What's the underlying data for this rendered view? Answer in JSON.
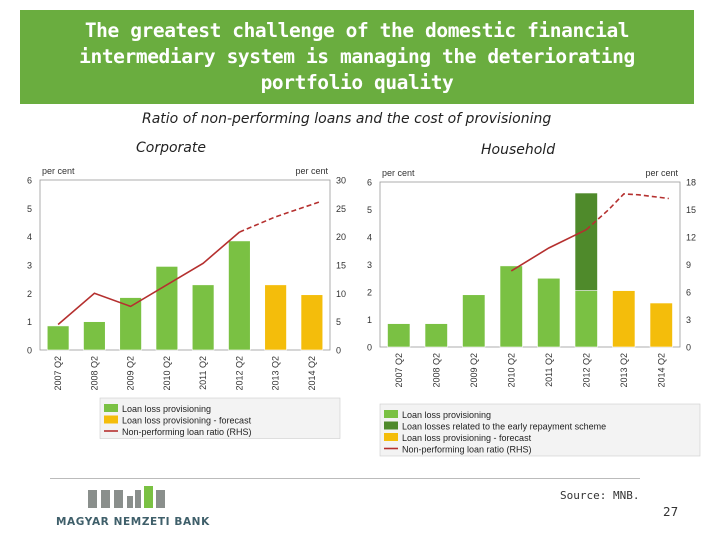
{
  "slide": {
    "title": "The greatest challenge of the domestic financial\nintermediary system is managing the deteriorating\nportfolio quality",
    "subtitle": "Ratio of non-performing loans and the cost of provisioning",
    "source": "Source: MNB.",
    "page_number": "27",
    "logo_text": "MAGYAR NEMZETI BANK"
  },
  "colors": {
    "title_bg": "#6aad3f",
    "provisioning": "#7ac143",
    "early_repayment": "#4f8a2b",
    "forecast": "#f4bd0b",
    "npl_line": "#b5302f"
  },
  "chart_data": [
    {
      "type": "bar",
      "panel_label": "Corporate",
      "categories": [
        "2007 Q2",
        "2008 Q2",
        "2009 Q2",
        "2010 Q2",
        "2011 Q2",
        "2012 Q2",
        "2013 Q2",
        "2014 Q2"
      ],
      "left_axis": {
        "label": "per cent",
        "ylim": [
          0,
          6
        ],
        "ticks": [
          "0",
          "1",
          "2",
          "3",
          "4",
          "5",
          "6"
        ]
      },
      "right_axis": {
        "label": "per cent",
        "ylim": [
          0,
          30
        ],
        "ticks": [
          "0",
          "5",
          "10",
          "15",
          "20",
          "25",
          "30"
        ]
      },
      "series": [
        {
          "name": "Loan loss provisioning",
          "axis": "left",
          "values": [
            0.85,
            1.0,
            1.85,
            2.95,
            2.3,
            3.85,
            null,
            null
          ]
        },
        {
          "name": "Loan loss provisioning - forecast",
          "axis": "left",
          "values": [
            null,
            null,
            null,
            null,
            null,
            null,
            2.3,
            1.95
          ]
        },
        {
          "name": "Non-performing loan ratio (RHS)",
          "axis": "right",
          "type": "line",
          "x": [
            0,
            1,
            2,
            3,
            4,
            5,
            6,
            6.5,
            7.25
          ],
          "values": [
            4.5,
            10.0,
            7.7,
            11.5,
            15.3,
            20.8,
            23.5,
            24.6,
            26.2
          ]
        }
      ],
      "legend": [
        "Loan loss provisioning",
        "Loan loss provisioning - forecast",
        "Non-performing loan ratio (RHS)"
      ],
      "legend_position": "bottom"
    },
    {
      "type": "bar",
      "panel_label": "Household",
      "categories": [
        "2007 Q2",
        "2008 Q2",
        "2009 Q2",
        "2010 Q2",
        "2011 Q2",
        "2012 Q2",
        "2013 Q2",
        "2014 Q2"
      ],
      "left_axis": {
        "label": "per cent",
        "ylim": [
          0,
          6
        ],
        "ticks": [
          "0",
          "1",
          "2",
          "3",
          "4",
          "5",
          "6"
        ]
      },
      "right_axis": {
        "label": "per cent",
        "ylim": [
          0,
          18
        ],
        "ticks": [
          "0",
          "3",
          "6",
          "9",
          "12",
          "15",
          "18"
        ]
      },
      "series": [
        {
          "name": "Loan loss provisioning",
          "axis": "left",
          "values": [
            0.85,
            0.85,
            1.9,
            2.95,
            2.5,
            2.05,
            null,
            null
          ]
        },
        {
          "name": "Loan losses related to the early repayment scheme",
          "axis": "left",
          "values": [
            null,
            null,
            null,
            null,
            null,
            3.55,
            null,
            null
          ]
        },
        {
          "name": "Loan loss provisioning - forecast",
          "axis": "left",
          "values": [
            null,
            null,
            null,
            null,
            null,
            null,
            2.05,
            1.6
          ]
        },
        {
          "name": "Non-performing loan ratio (RHS)",
          "axis": "right",
          "type": "line",
          "x": [
            3,
            4,
            5,
            5.6,
            6,
            6.4,
            7.2
          ],
          "values": [
            8.3,
            10.8,
            12.8,
            15.0,
            16.7,
            16.6,
            16.2
          ]
        }
      ],
      "legend": [
        "Loan loss provisioning",
        "Loan losses related to the early repayment scheme",
        "Loan loss provisioning - forecast",
        "Non-performing loan ratio (RHS)"
      ],
      "legend_position": "bottom"
    }
  ]
}
